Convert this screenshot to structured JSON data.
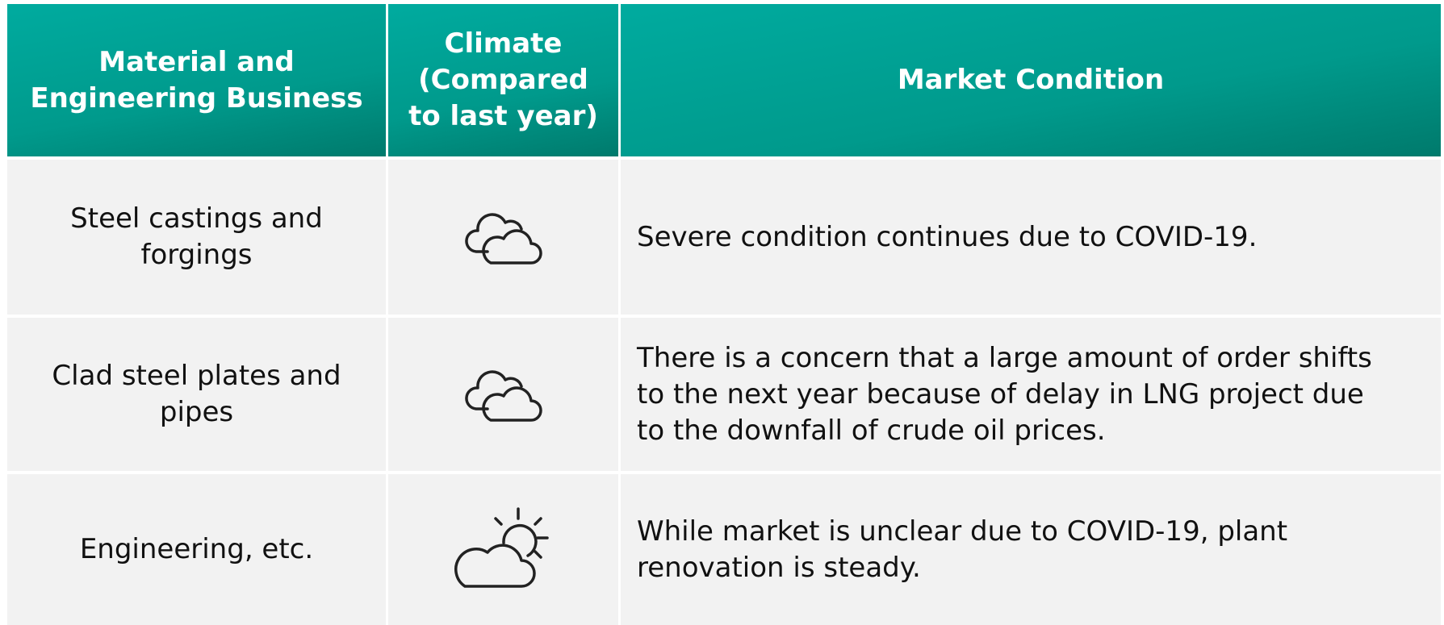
{
  "table": {
    "header": [
      [
        "Material and",
        "Engineering Business"
      ],
      [
        "Climate",
        "(Compared",
        "to last year)"
      ],
      [
        "Market Condition"
      ]
    ],
    "rows": [
      {
        "business": [
          "Steel castings and",
          "forgings"
        ],
        "condition": [
          "Severe condition continues due to COVID-19."
        ]
      },
      {
        "business": [
          "Clad steel plates and",
          "pipes"
        ],
        "condition": [
          "There is a concern that a large amount of order shifts",
          "to the next year because of delay in LNG project due",
          "to the downfall of crude oil prices."
        ]
      },
      {
        "business": [
          "Engineering, etc."
        ],
        "condition": [
          "While market is unclear due to COVID-19, plant",
          "renovation is steady."
        ]
      }
    ]
  }
}
